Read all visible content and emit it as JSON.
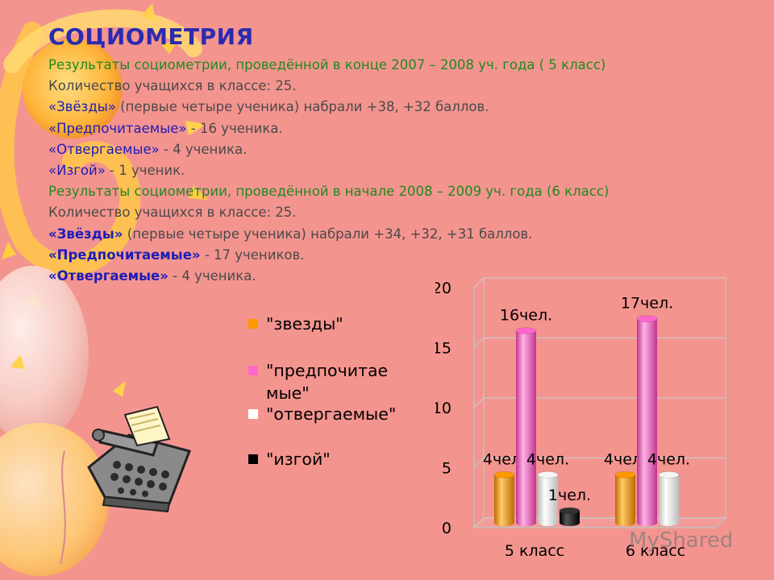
{
  "slide": {
    "title": "СОЦИОМЕТРИЯ",
    "colors": {
      "title": "#2b2bb0",
      "green": "#1f8a1f",
      "grey": "#4a4a4a",
      "blue": "#1d1db8",
      "background": "#f4948f"
    },
    "lines": [
      {
        "segments": [
          {
            "text": "Результаты социометрии, проведённой в конце 2007 – 2008 уч. года ( 5 класс)",
            "color": "green"
          }
        ]
      },
      {
        "segments": [
          {
            "text": "Количество учащихся в классе: 25.",
            "color": "grey"
          }
        ]
      },
      {
        "segments": [
          {
            "text": "«Звёзды»",
            "color": "blue"
          },
          {
            "text": " (первые четыре ученика) набрали +38, +32 баллов.",
            "color": "grey"
          }
        ]
      },
      {
        "segments": [
          {
            "text": "«Предпочитаемые»",
            "color": "blue"
          },
          {
            "text": " - 16 ученика.",
            "color": "grey"
          }
        ]
      },
      {
        "segments": [
          {
            "text": "«Отвергаемые»",
            "color": "blue"
          },
          {
            "text": " - 4 ученика.",
            "color": "grey"
          }
        ]
      },
      {
        "segments": [
          {
            "text": "«Изгой»",
            "color": "blue"
          },
          {
            "text": " - 1 ученик.",
            "color": "grey"
          }
        ]
      },
      {
        "segments": [
          {
            "text": "Результаты социометрии, проведённой в начале 2008 – 2009 уч. года (6 класс)",
            "color": "green"
          }
        ]
      },
      {
        "segments": [
          {
            "text": "Количество учащихся в классе: 25.",
            "color": "grey"
          }
        ]
      },
      {
        "segments": [
          {
            "text": "«Звёзды»",
            "color": "blue",
            "bold": true
          },
          {
            "text": " (первые четыре ученика) набрали +34, +32, +31 баллов.",
            "color": "grey"
          }
        ]
      },
      {
        "segments": [
          {
            "text": "«Предпочитаемые»",
            "color": "blue",
            "bold": true
          },
          {
            "text": " - 17 учеников.",
            "color": "grey"
          }
        ]
      },
      {
        "segments": [
          {
            "text": "«Отвергаемые»",
            "color": "blue",
            "bold": true
          },
          {
            "text": " - 4 ученика.",
            "color": "grey"
          }
        ]
      }
    ]
  },
  "legend": {
    "items": [
      {
        "label": "\"звезды\"",
        "color": "#ff9900"
      },
      {
        "label": "\"предпочитае мые\"",
        "color": "#ff66cc"
      },
      {
        "label": "\"отвергаемые\"",
        "color": "#ffffff"
      },
      {
        "label": "\"изгой\"",
        "color": "#000000"
      }
    ]
  },
  "chart_data": {
    "type": "bar",
    "style": "3d-cylinder",
    "categories": [
      "5 класс",
      "6 класс"
    ],
    "ylim": [
      0,
      20
    ],
    "yticks": [
      "0",
      "5",
      "10",
      "15",
      "20"
    ],
    "ytick_values": [
      0,
      5,
      10,
      15,
      20
    ],
    "grid": true,
    "legend_position": "left",
    "series": [
      {
        "name": "\"звезды\"",
        "color": "#ff9900",
        "values": [
          4,
          4
        ],
        "labels": [
          "4чел.",
          "4чел."
        ]
      },
      {
        "name": "\"предпочитае мые\"",
        "color": "#ff66cc",
        "values": [
          16,
          17
        ],
        "labels": [
          "16чел.",
          "17чел."
        ]
      },
      {
        "name": "\"отвергаемые\"",
        "color": "#ffffff",
        "values": [
          4,
          4
        ],
        "labels": [
          "4чел.",
          "4чел."
        ]
      },
      {
        "name": "\"изгой\"",
        "color": "#000000",
        "values": [
          1,
          null
        ],
        "labels": [
          "1чел.",
          null
        ]
      }
    ]
  },
  "watermark": "MyShared"
}
